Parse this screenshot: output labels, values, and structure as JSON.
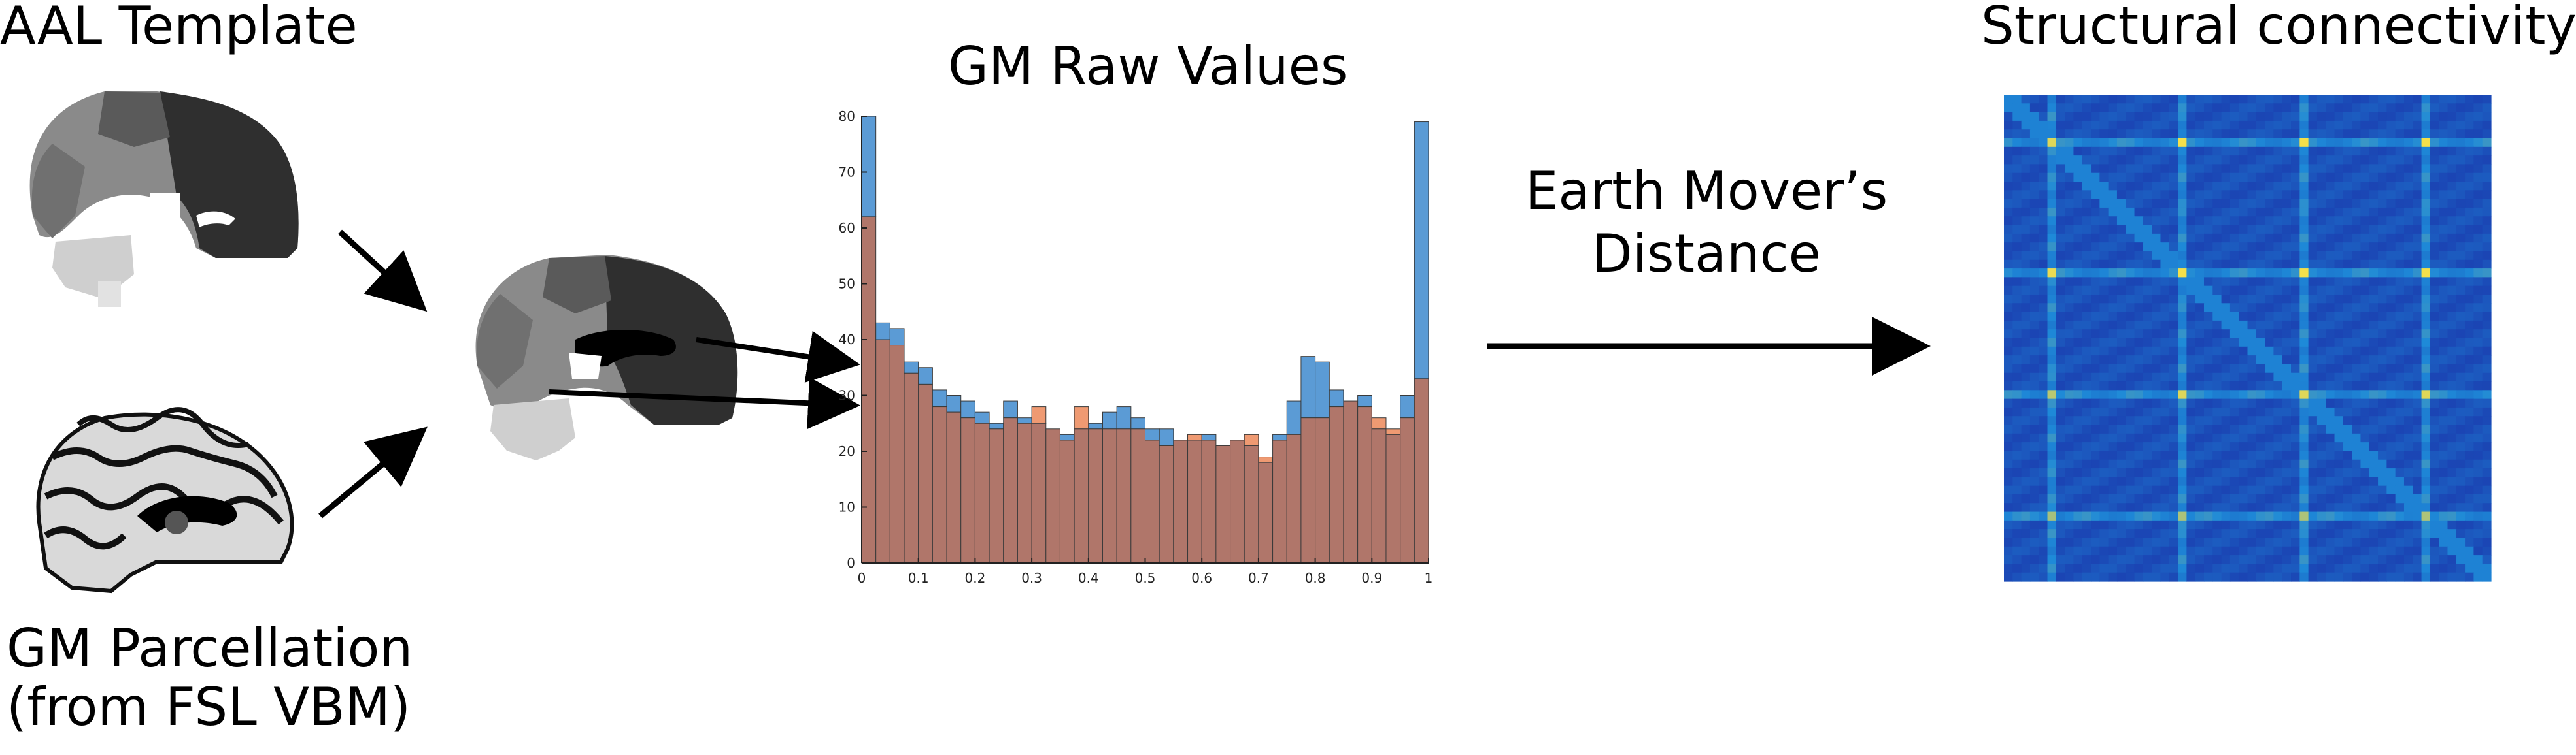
{
  "labels": {
    "aal_template": "AAL Template",
    "gm_parcellation_line1": "GM Parcellation",
    "gm_parcellation_line2": "(from FSL VBM)",
    "emd_line1": "Earth Mover’s",
    "emd_line2": "Distance",
    "structural_connectivity": "Structural connectivity"
  },
  "colors": {
    "series_blue": "#5b9bd5",
    "series_orange": "#ef9a72",
    "overlap_brown": "#b0766a",
    "matrix_low": "#1a2ea8",
    "matrix_mid": "#1e8ad8",
    "matrix_high": "#f5e04a"
  },
  "chart_data": {
    "type": "bar",
    "title": "GM Raw Values",
    "xlabel": "",
    "ylabel": "",
    "xlim": [
      0,
      1
    ],
    "ylim": [
      0,
      80
    ],
    "xticks": [
      "0",
      "0.1",
      "0.2",
      "0.3",
      "0.4",
      "0.5",
      "0.6",
      "0.7",
      "0.8",
      "0.9",
      "1"
    ],
    "yticks": [
      "0",
      "10",
      "20",
      "30",
      "40",
      "50",
      "60",
      "70",
      "80"
    ],
    "bin_count": 40,
    "series": [
      {
        "values": [
          80,
          43,
          42,
          36,
          35,
          31,
          30,
          29,
          27,
          25,
          29,
          26,
          25,
          24,
          23,
          24,
          25,
          27,
          28,
          26,
          24,
          24,
          22,
          22,
          23,
          21,
          22,
          21,
          18,
          23,
          29,
          37,
          36,
          31,
          29,
          30,
          24,
          23,
          30,
          79
        ]
      },
      {
        "values": [
          62,
          40,
          39,
          34,
          32,
          28,
          27,
          26,
          25,
          24,
          26,
          25,
          28,
          24,
          22,
          28,
          24,
          24,
          24,
          24,
          22,
          21,
          22,
          23,
          22,
          21,
          22,
          23,
          19,
          22,
          23,
          26,
          26,
          28,
          29,
          28,
          26,
          24,
          26,
          33
        ]
      }
    ]
  }
}
